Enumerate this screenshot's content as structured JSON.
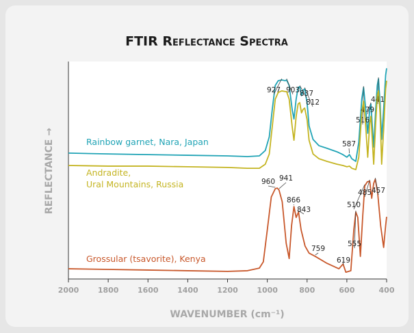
{
  "chart_data": {
    "type": "line",
    "title": "FTIR Reflectance Spectra",
    "xlabel": "WAVENUMBER (cm⁻¹)",
    "ylabel": "REFLECTANCE →",
    "xlim": [
      2000,
      400
    ],
    "xticks": [
      2000,
      1800,
      1600,
      1400,
      1200,
      1000,
      800,
      600,
      400
    ],
    "ylim": [
      0,
      100
    ],
    "series": [
      {
        "name": "Rainbow garnet, Nara, Japan",
        "color": "#1fa3b5",
        "x": [
          2000,
          1800,
          1600,
          1400,
          1200,
          1100,
          1040,
          1010,
          990,
          975,
          960,
          945,
          927,
          910,
          903,
          890,
          875,
          866,
          855,
          845,
          837,
          828,
          820,
          812,
          800,
          790,
          770,
          740,
          700,
          650,
          620,
          600,
          587,
          575,
          555,
          540,
          525,
          516,
          505,
          495,
          485,
          479,
          472,
          465,
          455,
          447,
          441,
          433,
          425,
          415,
          405,
          400
        ],
        "values": [
          57.9,
          57.5,
          57.2,
          56.9,
          56.6,
          56.3,
          56.6,
          59.1,
          65.4,
          78.0,
          89.0,
          91.2,
          91.5,
          91.2,
          91.5,
          89.0,
          78.0,
          73.6,
          82.7,
          88.1,
          88.4,
          84.3,
          86.8,
          87.4,
          81.1,
          70.4,
          64.2,
          61.3,
          60.1,
          58.5,
          57.2,
          56.0,
          57.2,
          55.3,
          54.1,
          62.9,
          82.7,
          88.1,
          78.0,
          67.0,
          78.0,
          80.5,
          70.4,
          60.7,
          78.0,
          89.0,
          92.1,
          81.1,
          64.2,
          78.0,
          93.7,
          96.9
        ],
        "peaks": [
          927,
          903,
          837,
          812,
          587,
          516,
          479,
          441
        ]
      },
      {
        "name": "Andradite,\nUral Mountains, Russia",
        "color": "#c4b421",
        "x": [
          2000,
          1800,
          1600,
          1400,
          1200,
          1100,
          1040,
          1010,
          990,
          975,
          960,
          945,
          927,
          910,
          903,
          890,
          875,
          866,
          855,
          845,
          837,
          828,
          820,
          812,
          800,
          790,
          770,
          740,
          700,
          650,
          620,
          600,
          587,
          575,
          555,
          540,
          525,
          516,
          505,
          495,
          485,
          479,
          472,
          465,
          455,
          447,
          441,
          433,
          425,
          415,
          405,
          400
        ],
        "values": [
          52.2,
          51.9,
          51.9,
          51.6,
          51.3,
          50.9,
          50.9,
          52.8,
          57.5,
          70.1,
          82.7,
          85.8,
          86.5,
          86.2,
          86.2,
          82.7,
          70.1,
          63.8,
          74.8,
          80.5,
          81.1,
          76.4,
          78.0,
          78.6,
          73.3,
          63.8,
          57.5,
          55.3,
          54.1,
          52.8,
          52.2,
          51.6,
          51.9,
          50.9,
          50.3,
          56.0,
          76.4,
          81.8,
          70.1,
          56.0,
          71.7,
          74.8,
          63.8,
          52.8,
          71.7,
          84.3,
          86.5,
          76.4,
          52.8,
          68.6,
          87.4,
          91.2
        ],
        "peaks": []
      },
      {
        "name": "Grossular (tsavorite), Kenya",
        "color": "#c8572a",
        "x": [
          2000,
          1800,
          1600,
          1400,
          1200,
          1100,
          1040,
          1020,
          1000,
          980,
          960,
          950,
          941,
          925,
          905,
          890,
          878,
          866,
          855,
          843,
          830,
          810,
          790,
          759,
          700,
          640,
          619,
          605,
          580,
          565,
          555,
          545,
          532,
          520,
          510,
          497,
          485,
          475,
          465,
          457,
          445,
          430,
          415,
          405,
          400
        ],
        "values": [
          4.7,
          4.4,
          4.1,
          3.8,
          3.5,
          3.8,
          5.0,
          7.9,
          22.6,
          37.7,
          41.5,
          41.8,
          40.9,
          35.5,
          16.4,
          9.4,
          24.5,
          33.3,
          28.3,
          30.8,
          22.6,
          15.1,
          11.9,
          10.4,
          7.2,
          4.7,
          6.9,
          3.1,
          3.8,
          22.6,
          30.8,
          28.3,
          10.4,
          29.2,
          42.8,
          44.7,
          45.0,
          37.1,
          44.0,
          45.9,
          39.6,
          24.5,
          14.5,
          24.5,
          28.6
        ],
        "peaks": [
          960,
          941,
          866,
          843,
          759,
          619,
          555,
          510,
          485,
          457
        ]
      }
    ]
  }
}
